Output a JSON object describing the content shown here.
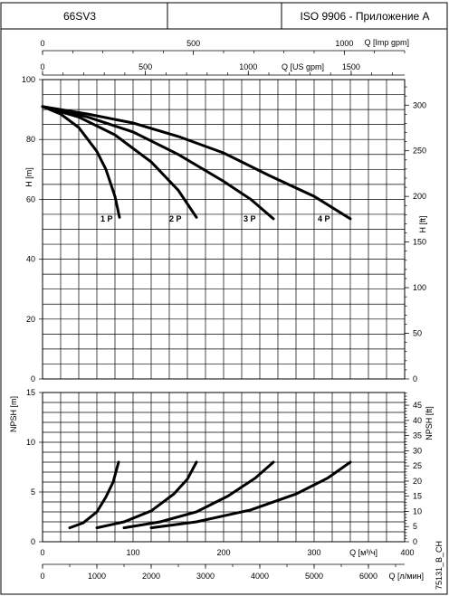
{
  "header": {
    "model": "66SV3",
    "blank": "",
    "standard": "ISO 9906 - Приложение A"
  },
  "code": "75131_B_CH",
  "chart_data": [
    {
      "type": "line",
      "panel": "head",
      "ylabel": "H [m]",
      "ylabel_right": "H [ft]",
      "ylim": [
        0,
        100
      ],
      "ylim_right_ft": [
        0,
        328
      ],
      "xlim": [
        0,
        400
      ],
      "y_ticks": [
        0,
        20,
        40,
        60,
        80,
        100
      ],
      "y_ticks_right": [
        0,
        50,
        100,
        150,
        200,
        250,
        300
      ],
      "series": [
        {
          "name": "1 P",
          "x": [
            0,
            20,
            40,
            60,
            70,
            80,
            85
          ],
          "y": [
            91,
            88.5,
            84,
            76,
            70,
            61,
            54
          ]
        },
        {
          "name": "2 P",
          "x": [
            0,
            40,
            80,
            120,
            150,
            170
          ],
          "y": [
            91,
            87.5,
            81.5,
            72.5,
            63,
            54
          ]
        },
        {
          "name": "3 P",
          "x": [
            0,
            50,
            100,
            150,
            200,
            230,
            255
          ],
          "y": [
            91,
            87.5,
            82.5,
            75,
            66,
            60,
            53.5
          ]
        },
        {
          "name": "4 P",
          "x": [
            0,
            50,
            100,
            150,
            200,
            250,
            300,
            340
          ],
          "y": [
            91,
            88.5,
            85.5,
            81,
            75.5,
            68,
            61,
            53.5
          ]
        }
      ],
      "curve_labels": [
        {
          "text": "1 P",
          "x": 64,
          "y": 52.5
        },
        {
          "text": "2 P",
          "x": 140,
          "y": 52.5
        },
        {
          "text": "3 P",
          "x": 222,
          "y": 52.5
        },
        {
          "text": "4 P",
          "x": 304,
          "y": 52.5
        }
      ]
    },
    {
      "type": "line",
      "panel": "npsh",
      "ylabel": "NPSH [m]",
      "ylabel_right": "NPSH [ft]",
      "ylim": [
        0,
        15
      ],
      "ylim_right_ft": [
        0,
        49.2
      ],
      "xlim": [
        0,
        400
      ],
      "y_ticks": [
        0,
        5,
        10,
        15
      ],
      "y_ticks_right": [
        0,
        5,
        10,
        15,
        20,
        25,
        30,
        35,
        40,
        45
      ],
      "series": [
        {
          "name": "1 P",
          "x": [
            30,
            45,
            60,
            70,
            78,
            84
          ],
          "y": [
            1.4,
            1.9,
            3.0,
            4.5,
            6.0,
            8.0
          ]
        },
        {
          "name": "2 P",
          "x": [
            60,
            90,
            120,
            145,
            160,
            170
          ],
          "y": [
            1.4,
            2.0,
            3.1,
            4.8,
            6.3,
            8.0
          ]
        },
        {
          "name": "3 P",
          "x": [
            90,
            130,
            170,
            205,
            235,
            255
          ],
          "y": [
            1.4,
            2.0,
            3.0,
            4.6,
            6.4,
            8.0
          ]
        },
        {
          "name": "4 P",
          "x": [
            120,
            170,
            230,
            280,
            315,
            340
          ],
          "y": [
            1.4,
            2.0,
            3.2,
            4.8,
            6.4,
            8.0
          ]
        }
      ]
    }
  ],
  "axes": {
    "imp_gpm": {
      "label": "Q [Imp gpm]",
      "max": 1200,
      "ticks": [
        0,
        500,
        1000
      ],
      "minor_step": 100
    },
    "us_gpm": {
      "label": "Q [US gpm]",
      "max": 1760,
      "ticks": [
        0,
        500,
        1000,
        1500
      ],
      "minor_step": 100
    },
    "m3h": {
      "label": "Q [м³/ч]",
      "max": 400,
      "ticks": [
        0,
        100,
        200,
        300,
        400
      ]
    },
    "lmin": {
      "label": "Q [л/мин]",
      "max": 6667,
      "ticks": [
        0,
        1000,
        2000,
        3000,
        4000,
        5000,
        6000
      ],
      "minor_step": 500
    }
  }
}
